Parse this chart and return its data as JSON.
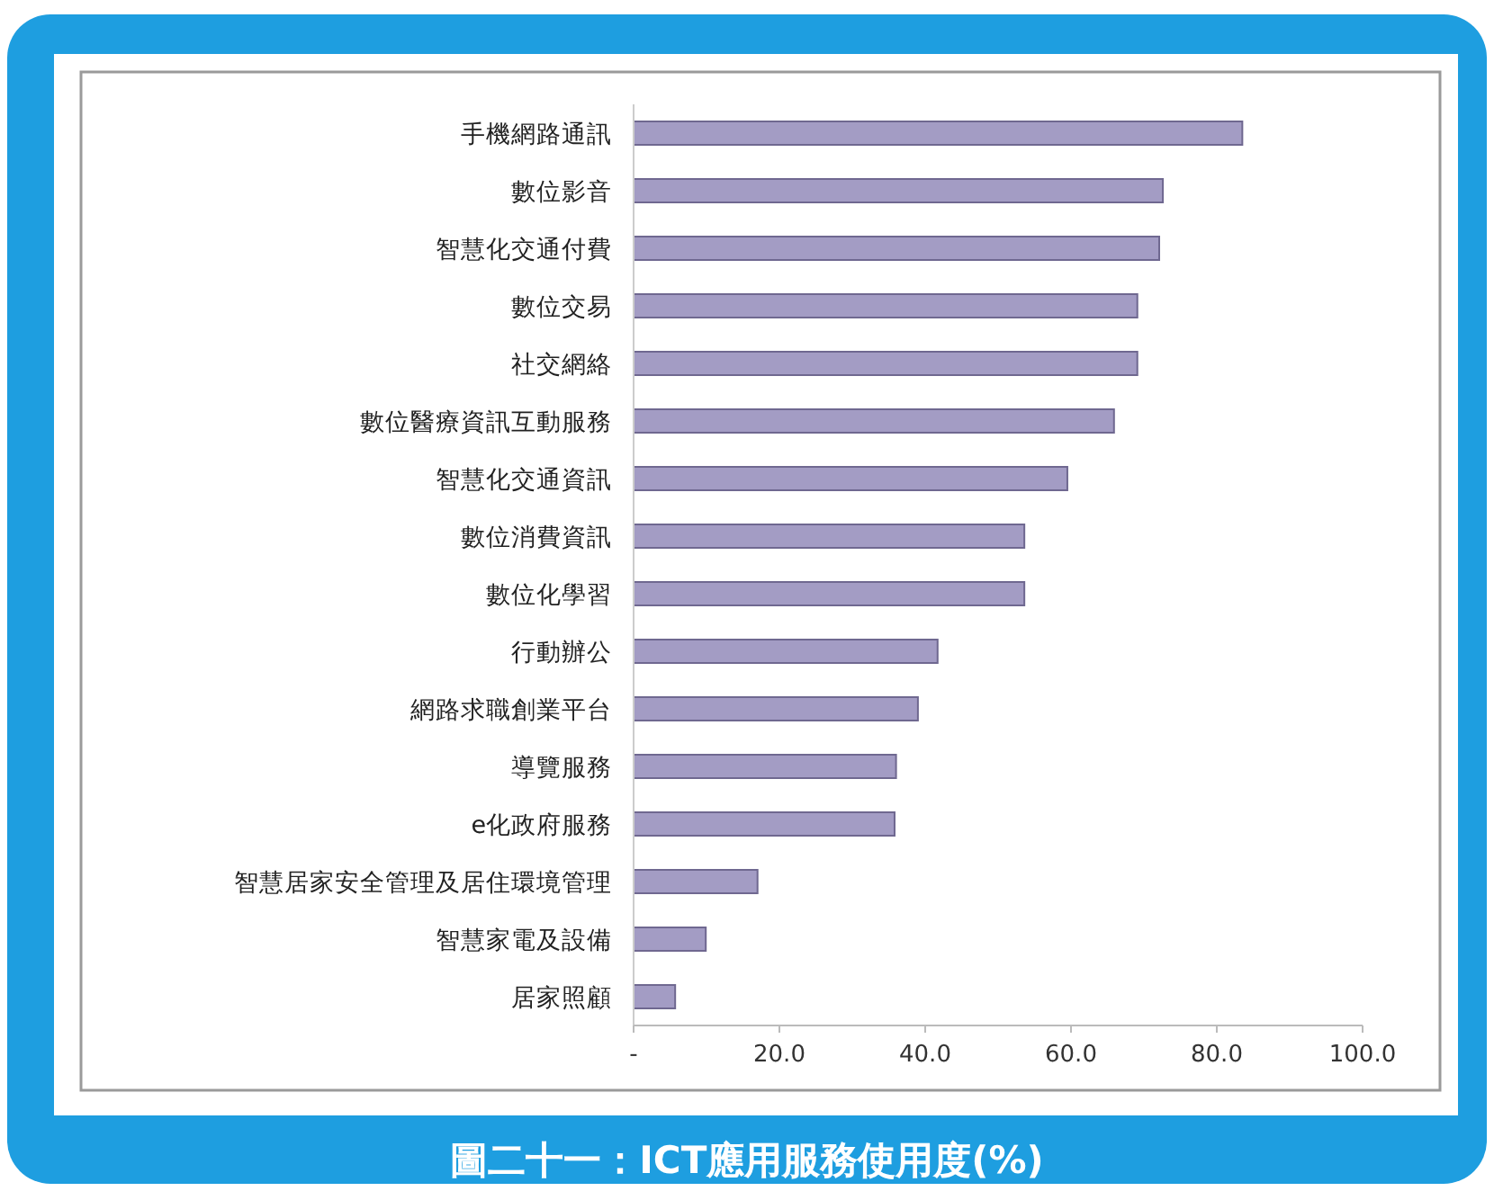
{
  "chart_data": {
    "type": "bar",
    "orientation": "horizontal",
    "title": "圖二十一：ICT應用服務使用度(%)",
    "categories": [
      "手機網路通訊",
      "數位影音",
      "智慧化交通付費",
      "數位交易",
      "社交網絡",
      "數位醫療資訊互動服務",
      "智慧化交通資訊",
      "數位消費資訊",
      "數位化學習",
      "行動辦公",
      "網路求職創業平台",
      "導覽服務",
      "e化政府服務",
      "智慧居家安全管理及居住環境管理",
      "智慧家電及設備",
      "居家照顧"
    ],
    "values": [
      83.5,
      72.6,
      72.1,
      69.1,
      69.1,
      65.9,
      59.5,
      53.6,
      53.6,
      41.7,
      39.0,
      36.0,
      35.8,
      17.0,
      9.9,
      5.7
    ],
    "color": "#a39cc4",
    "xlim": [
      0,
      100
    ],
    "xticks": [
      {
        "value": 0,
        "label": "-"
      },
      {
        "value": 20,
        "label": "20.0"
      },
      {
        "value": 40,
        "label": "40.0"
      },
      {
        "value": 60,
        "label": "60.0"
      },
      {
        "value": 80,
        "label": "80.0"
      },
      {
        "value": 100,
        "label": "100.0"
      }
    ]
  }
}
